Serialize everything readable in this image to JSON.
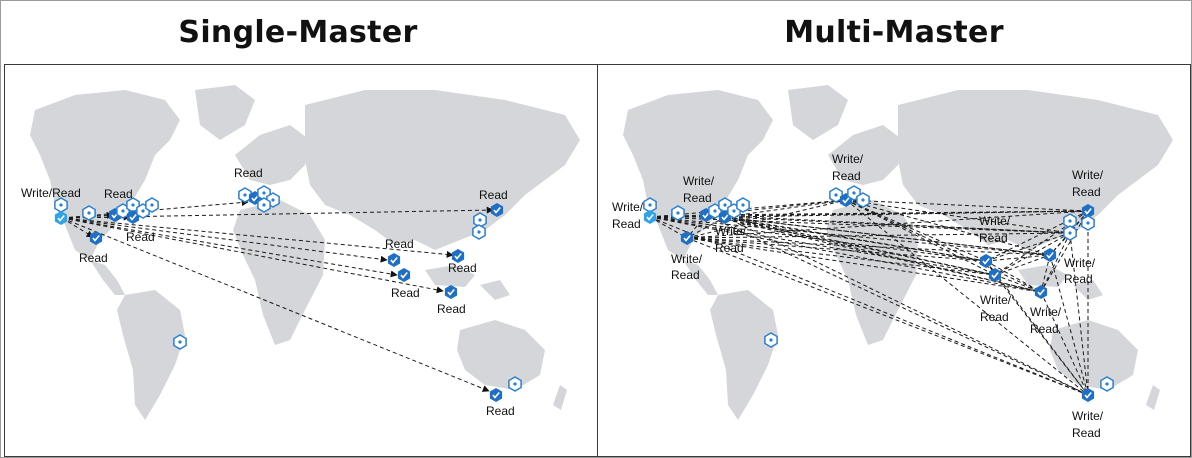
{
  "titles": {
    "single": "Single-Master",
    "multi": "Multi-Master"
  },
  "labels": {
    "write_read": "Write/Read",
    "read": "Read",
    "write": "Write/",
    "read_line": "Read"
  },
  "colors": {
    "land": "#d4d6da",
    "region_filled": "#1f6fc4",
    "region_master": "#2fa3e6",
    "region_outline": "#2a7fd0"
  },
  "icons": {
    "region_available": "hexagon-outline-icon",
    "region_active": "hexagon-check-icon"
  }
}
